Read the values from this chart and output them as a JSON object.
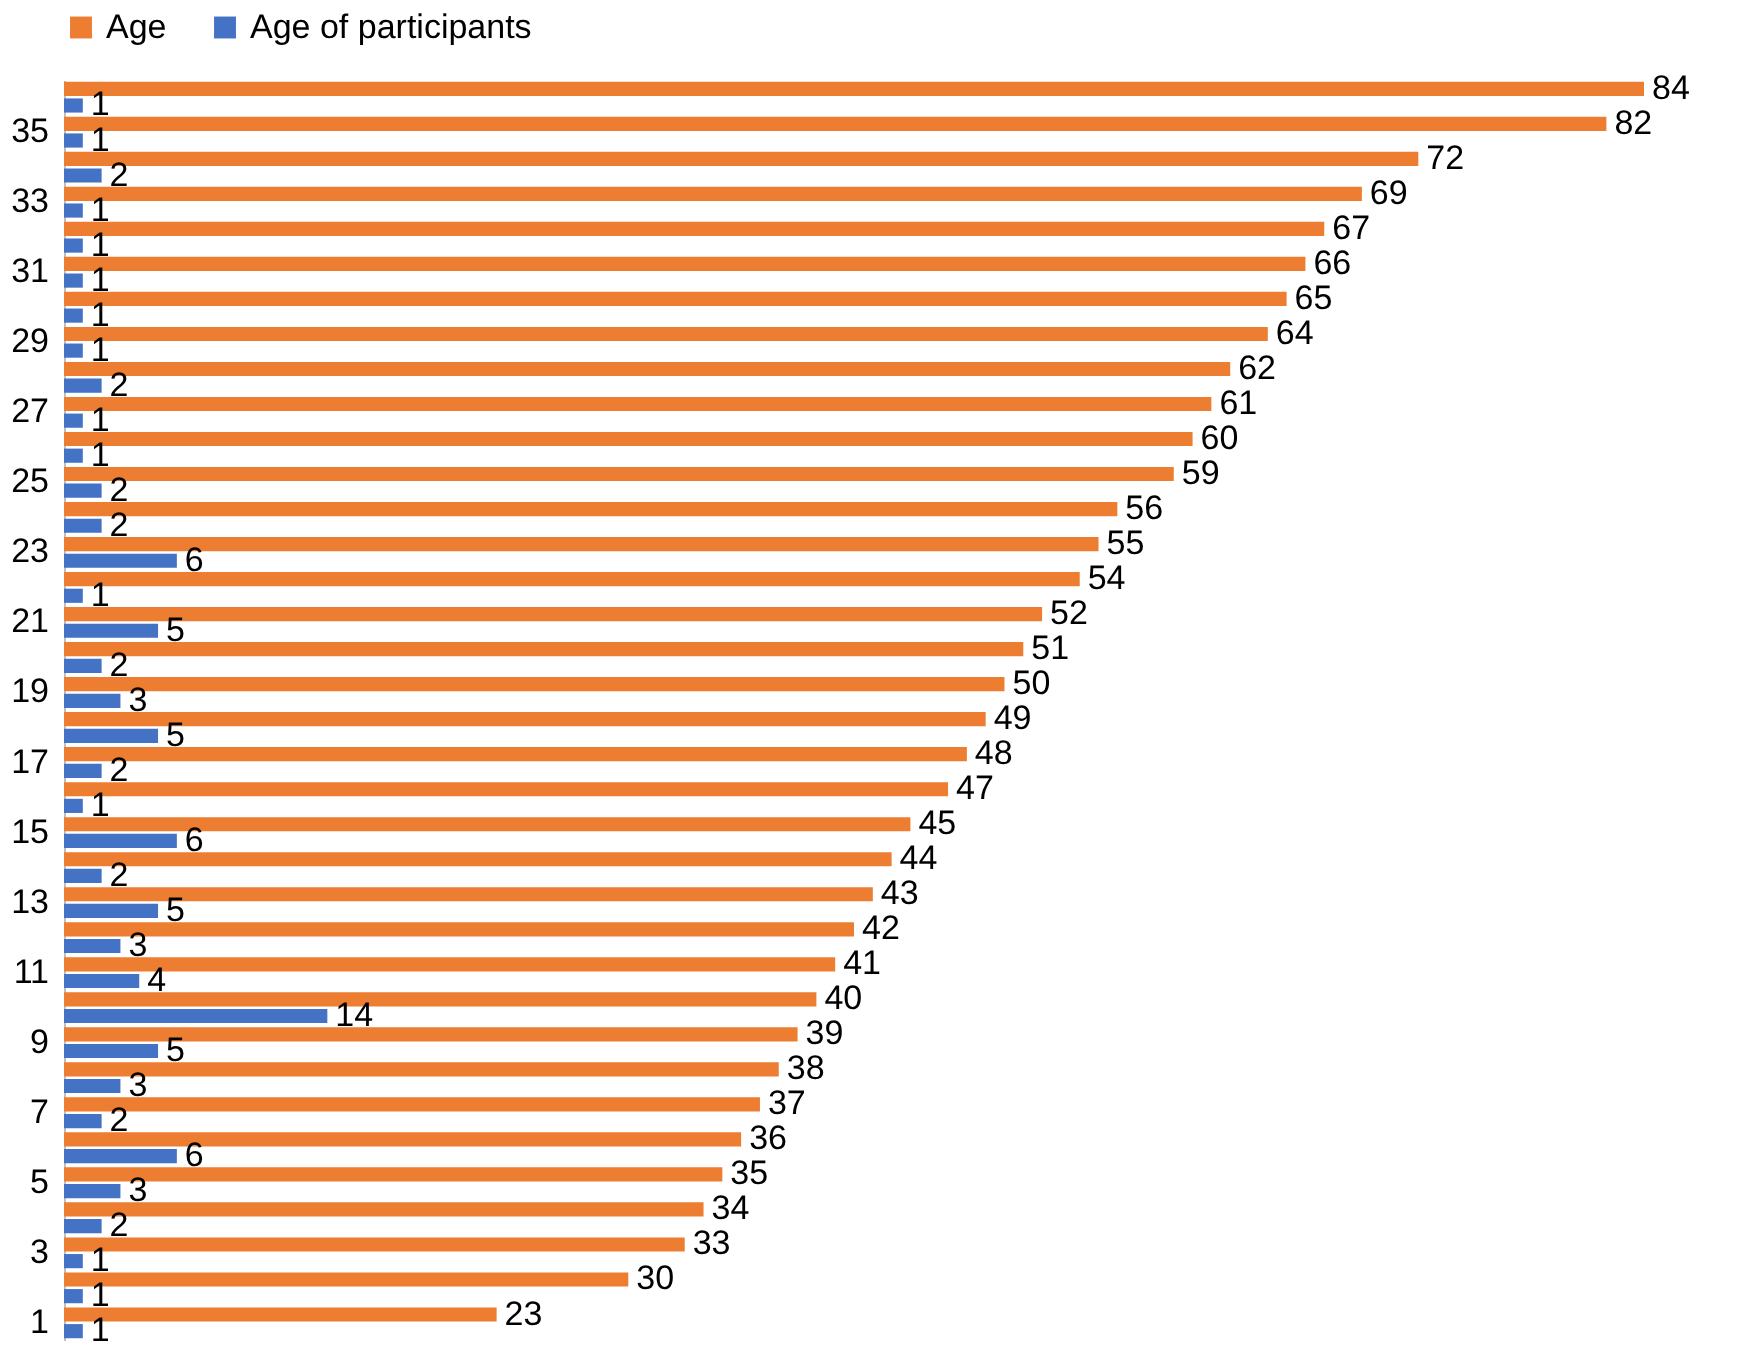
{
  "chart_data": {
    "type": "bar",
    "orientation": "horizontal",
    "data_labels": true,
    "legend": "top",
    "grid": false,
    "categories": [
      null,
      "35",
      null,
      "33",
      null,
      "31",
      null,
      "29",
      null,
      "27",
      null,
      "25",
      null,
      "23",
      null,
      "21",
      null,
      "19",
      null,
      "17",
      null,
      "15",
      null,
      "13",
      null,
      "11",
      null,
      "9",
      null,
      "7",
      null,
      "5",
      null,
      "3",
      null,
      "1"
    ],
    "series": [
      {
        "name": "Age",
        "color": "#ed7d31",
        "values": [
          84,
          82,
          72,
          69,
          67,
          66,
          65,
          64,
          62,
          61,
          60,
          59,
          56,
          55,
          54,
          52,
          51,
          50,
          49,
          48,
          47,
          45,
          44,
          43,
          42,
          41,
          40,
          39,
          38,
          37,
          36,
          35,
          34,
          33,
          30,
          23
        ]
      },
      {
        "name": "Age of participants",
        "color": "#4472c4",
        "values": [
          1,
          1,
          2,
          1,
          1,
          1,
          1,
          1,
          2,
          1,
          1,
          2,
          2,
          6,
          1,
          5,
          2,
          3,
          5,
          2,
          1,
          6,
          2,
          5,
          3,
          4,
          14,
          5,
          3,
          2,
          6,
          3,
          2,
          1,
          1,
          1
        ]
      }
    ]
  }
}
